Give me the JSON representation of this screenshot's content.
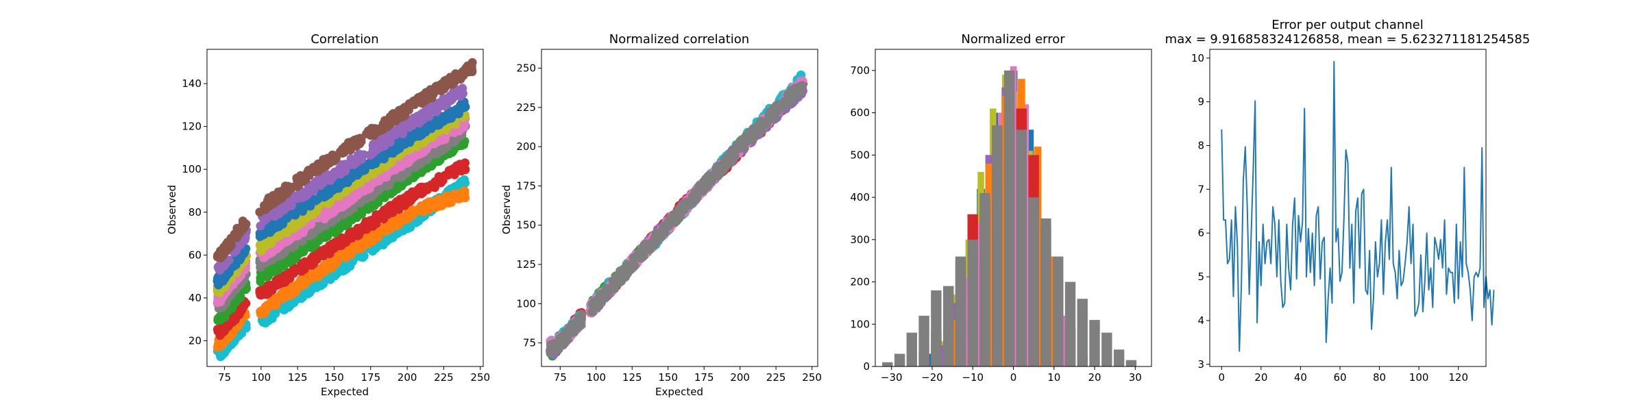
{
  "palette": [
    "#1f77b4",
    "#ff7f0e",
    "#2ca02c",
    "#d62728",
    "#9467bd",
    "#8c564b",
    "#e377c2",
    "#7f7f7f",
    "#bcbd22",
    "#17becf"
  ],
  "chart_data": [
    {
      "type": "scatter",
      "title": "Correlation",
      "xlabel": "Expected",
      "ylabel": "Observed",
      "xlim": [
        63,
        252
      ],
      "ylim": [
        8,
        156
      ],
      "xticks": [
        75,
        100,
        125,
        150,
        175,
        200,
        225,
        250
      ],
      "yticks": [
        20,
        40,
        60,
        80,
        100,
        120,
        140
      ],
      "grid": false,
      "bands": [
        {
          "color": "#17becf",
          "points": [
            [
              72,
              14
            ],
            [
              90,
              28
            ],
            [
              100,
              29
            ],
            [
              150,
              52
            ],
            [
              200,
              74
            ],
            [
              240,
              94
            ]
          ]
        },
        {
          "color": "#ff7f0e",
          "points": [
            [
              72,
              19
            ],
            [
              90,
              33
            ],
            [
              100,
              34
            ],
            [
              150,
              57
            ],
            [
              200,
              79
            ],
            [
              240,
              89
            ]
          ]
        },
        {
          "color": "#d62728",
          "points": [
            [
              72,
              24
            ],
            [
              90,
              38
            ],
            [
              100,
              42
            ],
            [
              150,
              64
            ],
            [
              200,
              86
            ],
            [
              240,
              102
            ]
          ]
        },
        {
          "color": "#2ca02c",
          "points": [
            [
              72,
              30
            ],
            [
              90,
              46
            ],
            [
              100,
              50
            ],
            [
              150,
              72
            ],
            [
              200,
              96
            ],
            [
              240,
              114
            ]
          ]
        },
        {
          "color": "#7f7f7f",
          "points": [
            [
              72,
              36
            ],
            [
              90,
              52
            ],
            [
              100,
              56
            ],
            [
              150,
              78
            ],
            [
              200,
              100
            ],
            [
              240,
              118
            ]
          ]
        },
        {
          "color": "#e377c2",
          "points": [
            [
              72,
              40
            ],
            [
              90,
              56
            ],
            [
              100,
              60
            ],
            [
              150,
              82
            ],
            [
              200,
              105
            ],
            [
              240,
              122
            ]
          ]
        },
        {
          "color": "#bcbd22",
          "points": [
            [
              72,
              44
            ],
            [
              90,
              60
            ],
            [
              100,
              64
            ],
            [
              150,
              88
            ],
            [
              200,
              110
            ],
            [
              240,
              126
            ]
          ]
        },
        {
          "color": "#1f77b4",
          "points": [
            [
              72,
              48
            ],
            [
              90,
              64
            ],
            [
              100,
              70
            ],
            [
              150,
              92
            ],
            [
              200,
              114
            ],
            [
              240,
              130
            ]
          ]
        },
        {
          "color": "#9467bd",
          "points": [
            [
              72,
              54
            ],
            [
              90,
              70
            ],
            [
              100,
              76
            ],
            [
              150,
              98
            ],
            [
              200,
              120
            ],
            [
              240,
              138
            ]
          ]
        },
        {
          "color": "#8c564b",
          "points": [
            [
              72,
              60
            ],
            [
              90,
              76
            ],
            [
              100,
              82
            ],
            [
              150,
              106
            ],
            [
              200,
              128
            ],
            [
              245,
              148
            ]
          ]
        }
      ]
    },
    {
      "type": "scatter",
      "title": "Normalized correlation",
      "xlabel": "Expected",
      "ylabel": "Observed",
      "xlim": [
        62,
        254
      ],
      "ylim": [
        60,
        262
      ],
      "xticks": [
        75,
        100,
        125,
        150,
        175,
        200,
        225,
        250
      ],
      "yticks": [
        75,
        100,
        125,
        150,
        175,
        200,
        225,
        250
      ],
      "grid": false,
      "bands": [
        {
          "color": "#d62728",
          "points": [
            [
              70,
              72
            ],
            [
              90,
              92
            ],
            [
              100,
              100
            ],
            [
              150,
              152
            ],
            [
              200,
              198
            ],
            [
              244,
              240
            ]
          ]
        },
        {
          "color": "#2ca02c",
          "points": [
            [
              70,
              70
            ],
            [
              90,
              90
            ],
            [
              100,
              102
            ],
            [
              150,
              150
            ],
            [
              200,
              200
            ],
            [
              244,
              242
            ]
          ]
        },
        {
          "color": "#17becf",
          "points": [
            [
              72,
              74
            ],
            [
              92,
              93
            ],
            [
              102,
              104
            ],
            [
              150,
              149
            ],
            [
              200,
              201
            ],
            [
              244,
              244
            ]
          ]
        },
        {
          "color": "#9467bd",
          "points": [
            [
              71,
              71
            ],
            [
              91,
              91
            ],
            [
              101,
              101
            ],
            [
              150,
              151
            ],
            [
              200,
              199
            ],
            [
              244,
              238
            ]
          ]
        },
        {
          "color": "#e377c2",
          "points": [
            [
              72,
              73
            ],
            [
              92,
              92
            ],
            [
              102,
              103
            ],
            [
              150,
              150
            ],
            [
              200,
              200
            ],
            [
              244,
              241
            ]
          ]
        },
        {
          "color": "#7f7f7f",
          "points": [
            [
              72,
              72
            ],
            [
              92,
              92
            ],
            [
              102,
              102
            ],
            [
              150,
              150
            ],
            [
              200,
              200
            ],
            [
              244,
              240
            ]
          ]
        }
      ]
    },
    {
      "type": "bar",
      "title": "Normalized error",
      "xlabel": "",
      "ylabel": "",
      "xlim": [
        -34,
        34
      ],
      "ylim": [
        0,
        750
      ],
      "xticks": [
        -30,
        -20,
        -10,
        0,
        10,
        20,
        30
      ],
      "yticks": [
        0,
        100,
        200,
        300,
        400,
        500,
        600,
        700
      ],
      "grid": false,
      "histograms": [
        {
          "color": "#1f77b4",
          "bin_width": 2,
          "bins": [
            [
              -20,
              30
            ],
            [
              -16,
              90
            ],
            [
              -12,
              220
            ],
            [
              -8,
              420
            ],
            [
              -4,
              600
            ],
            [
              0,
              700
            ],
            [
              4,
              560
            ],
            [
              8,
              320
            ],
            [
              12,
              120
            ]
          ]
        },
        {
          "color": "#bcbd22",
          "bin_width": 1.6,
          "bins": [
            [
              -18,
              60
            ],
            [
              -14,
              170
            ],
            [
              -11,
              300
            ],
            [
              -8,
              460
            ],
            [
              -5,
              610
            ],
            [
              -2,
              690
            ],
            [
              1,
              650
            ],
            [
              4,
              510
            ],
            [
              7,
              350
            ],
            [
              10,
              190
            ],
            [
              13,
              70
            ]
          ]
        },
        {
          "color": "#9467bd",
          "bin_width": 1.8,
          "bins": [
            [
              -18,
              50
            ],
            [
              -14,
              150
            ],
            [
              -10,
              290
            ],
            [
              -6,
              500
            ],
            [
              -2,
              660
            ],
            [
              2,
              600
            ],
            [
              6,
              400
            ],
            [
              10,
              180
            ],
            [
              14,
              60
            ]
          ]
        },
        {
          "color": "#e377c2",
          "bin_width": 1.6,
          "bins": [
            [
              -16,
              100
            ],
            [
              -12,
              210
            ],
            [
              -9,
              340
            ],
            [
              -6,
              460
            ],
            [
              -3,
              600
            ],
            [
              0,
              710
            ],
            [
              3,
              620
            ],
            [
              6,
              420
            ],
            [
              9,
              240
            ],
            [
              12,
              120
            ]
          ]
        },
        {
          "color": "#ff7f0e",
          "bin_width": 1.8,
          "bins": [
            [
              -14,
              110
            ],
            [
              -10,
              280
            ],
            [
              -6,
              480
            ],
            [
              -2,
              640
            ],
            [
              2,
              680
            ],
            [
              6,
              520
            ],
            [
              10,
              260
            ],
            [
              14,
              80
            ]
          ]
        },
        {
          "color": "#d62728",
          "bin_width": 2.6,
          "bins": [
            [
              -22,
              30
            ],
            [
              -19,
              80
            ],
            [
              -16,
              190
            ],
            [
              -13,
              250
            ],
            [
              -10,
              360
            ],
            [
              -7,
              390
            ],
            [
              -4,
              520
            ],
            [
              -1,
              600
            ],
            [
              2,
              610
            ],
            [
              5,
              500
            ],
            [
              8,
              330
            ],
            [
              11,
              200
            ],
            [
              14,
              90
            ],
            [
              17,
              30
            ]
          ]
        },
        {
          "color": "#7f7f7f",
          "bin_width": 2.6,
          "bins": [
            [
              -31,
              10
            ],
            [
              -28,
              30
            ],
            [
              -25,
              80
            ],
            [
              -22,
              120
            ],
            [
              -19,
              180
            ],
            [
              -16,
              190
            ],
            [
              -13,
              260
            ],
            [
              -10,
              300
            ],
            [
              -7,
              410
            ],
            [
              -4,
              570
            ],
            [
              -1,
              700
            ],
            [
              2,
              560
            ],
            [
              5,
              400
            ],
            [
              8,
              350
            ],
            [
              11,
              260
            ],
            [
              14,
              200
            ],
            [
              17,
              160
            ],
            [
              20,
              110
            ],
            [
              23,
              80
            ],
            [
              26,
              40
            ],
            [
              29,
              15
            ]
          ]
        }
      ]
    },
    {
      "type": "line",
      "title": "Error per output channel",
      "subtitle": "max = 9.916858324126858, mean = 5.623271181254585",
      "xlabel": "",
      "ylabel": "",
      "xlim": [
        -6,
        134
      ],
      "ylim": [
        2.95,
        10.2
      ],
      "xticks": [
        0,
        20,
        40,
        60,
        80,
        100,
        120
      ],
      "yticks": [
        3,
        4,
        5,
        6,
        7,
        8,
        9,
        10
      ],
      "grid": false,
      "series": [
        {
          "color": "#1f77b4",
          "values": [
            8.37,
            6.3,
            6.3,
            5.3,
            5.4,
            6.3,
            4.55,
            6.6,
            5.75,
            3.3,
            4.8,
            7.2,
            7.97,
            6.6,
            4.6,
            6.0,
            7.4,
            9.02,
            3.95,
            5.8,
            4.8,
            6.2,
            5.3,
            5.8,
            5.85,
            5.3,
            6.6,
            6.2,
            5.0,
            6.3,
            4.9,
            4.3,
            4.4,
            6.2,
            5.2,
            4.7,
            6.2,
            6.8,
            4.95,
            6.4,
            5.8,
            6.25,
            8.85,
            5.0,
            6.1,
            5.1,
            6.0,
            4.8,
            6.4,
            6.6,
            4.95,
            5.8,
            5.9,
            3.5,
            4.5,
            5.2,
            4.4,
            9.92,
            5.8,
            6.1,
            4.9,
            5.1,
            6.3,
            7.9,
            7.6,
            5.2,
            6.2,
            4.4,
            6.5,
            6.8,
            5.2,
            6.9,
            7.0,
            4.7,
            4.6,
            5.6,
            3.8,
            4.5,
            5.8,
            5.0,
            5.3,
            6.3,
            4.6,
            5.8,
            6.3,
            5.4,
            7.5,
            5.3,
            5.1,
            4.5,
            5.6,
            4.8,
            4.9,
            5.3,
            5.8,
            6.6,
            5.3,
            6.2,
            4.1,
            4.2,
            4.4,
            5.5,
            4.2,
            4.9,
            6.0,
            4.7,
            5.2,
            4.3,
            5.9,
            5.7,
            5.4,
            5.85,
            5.2,
            6.3,
            4.6,
            5.2,
            5.1,
            5.1,
            4.4,
            6.2,
            4.5,
            5.8,
            5.0,
            7.5,
            5.3,
            5.1,
            4.7,
            4.0,
            5.0,
            5.1,
            5.0,
            5.2,
            7.95,
            4.3,
            5.0,
            4.5,
            4.7,
            3.9,
            4.7
          ]
        }
      ]
    }
  ]
}
